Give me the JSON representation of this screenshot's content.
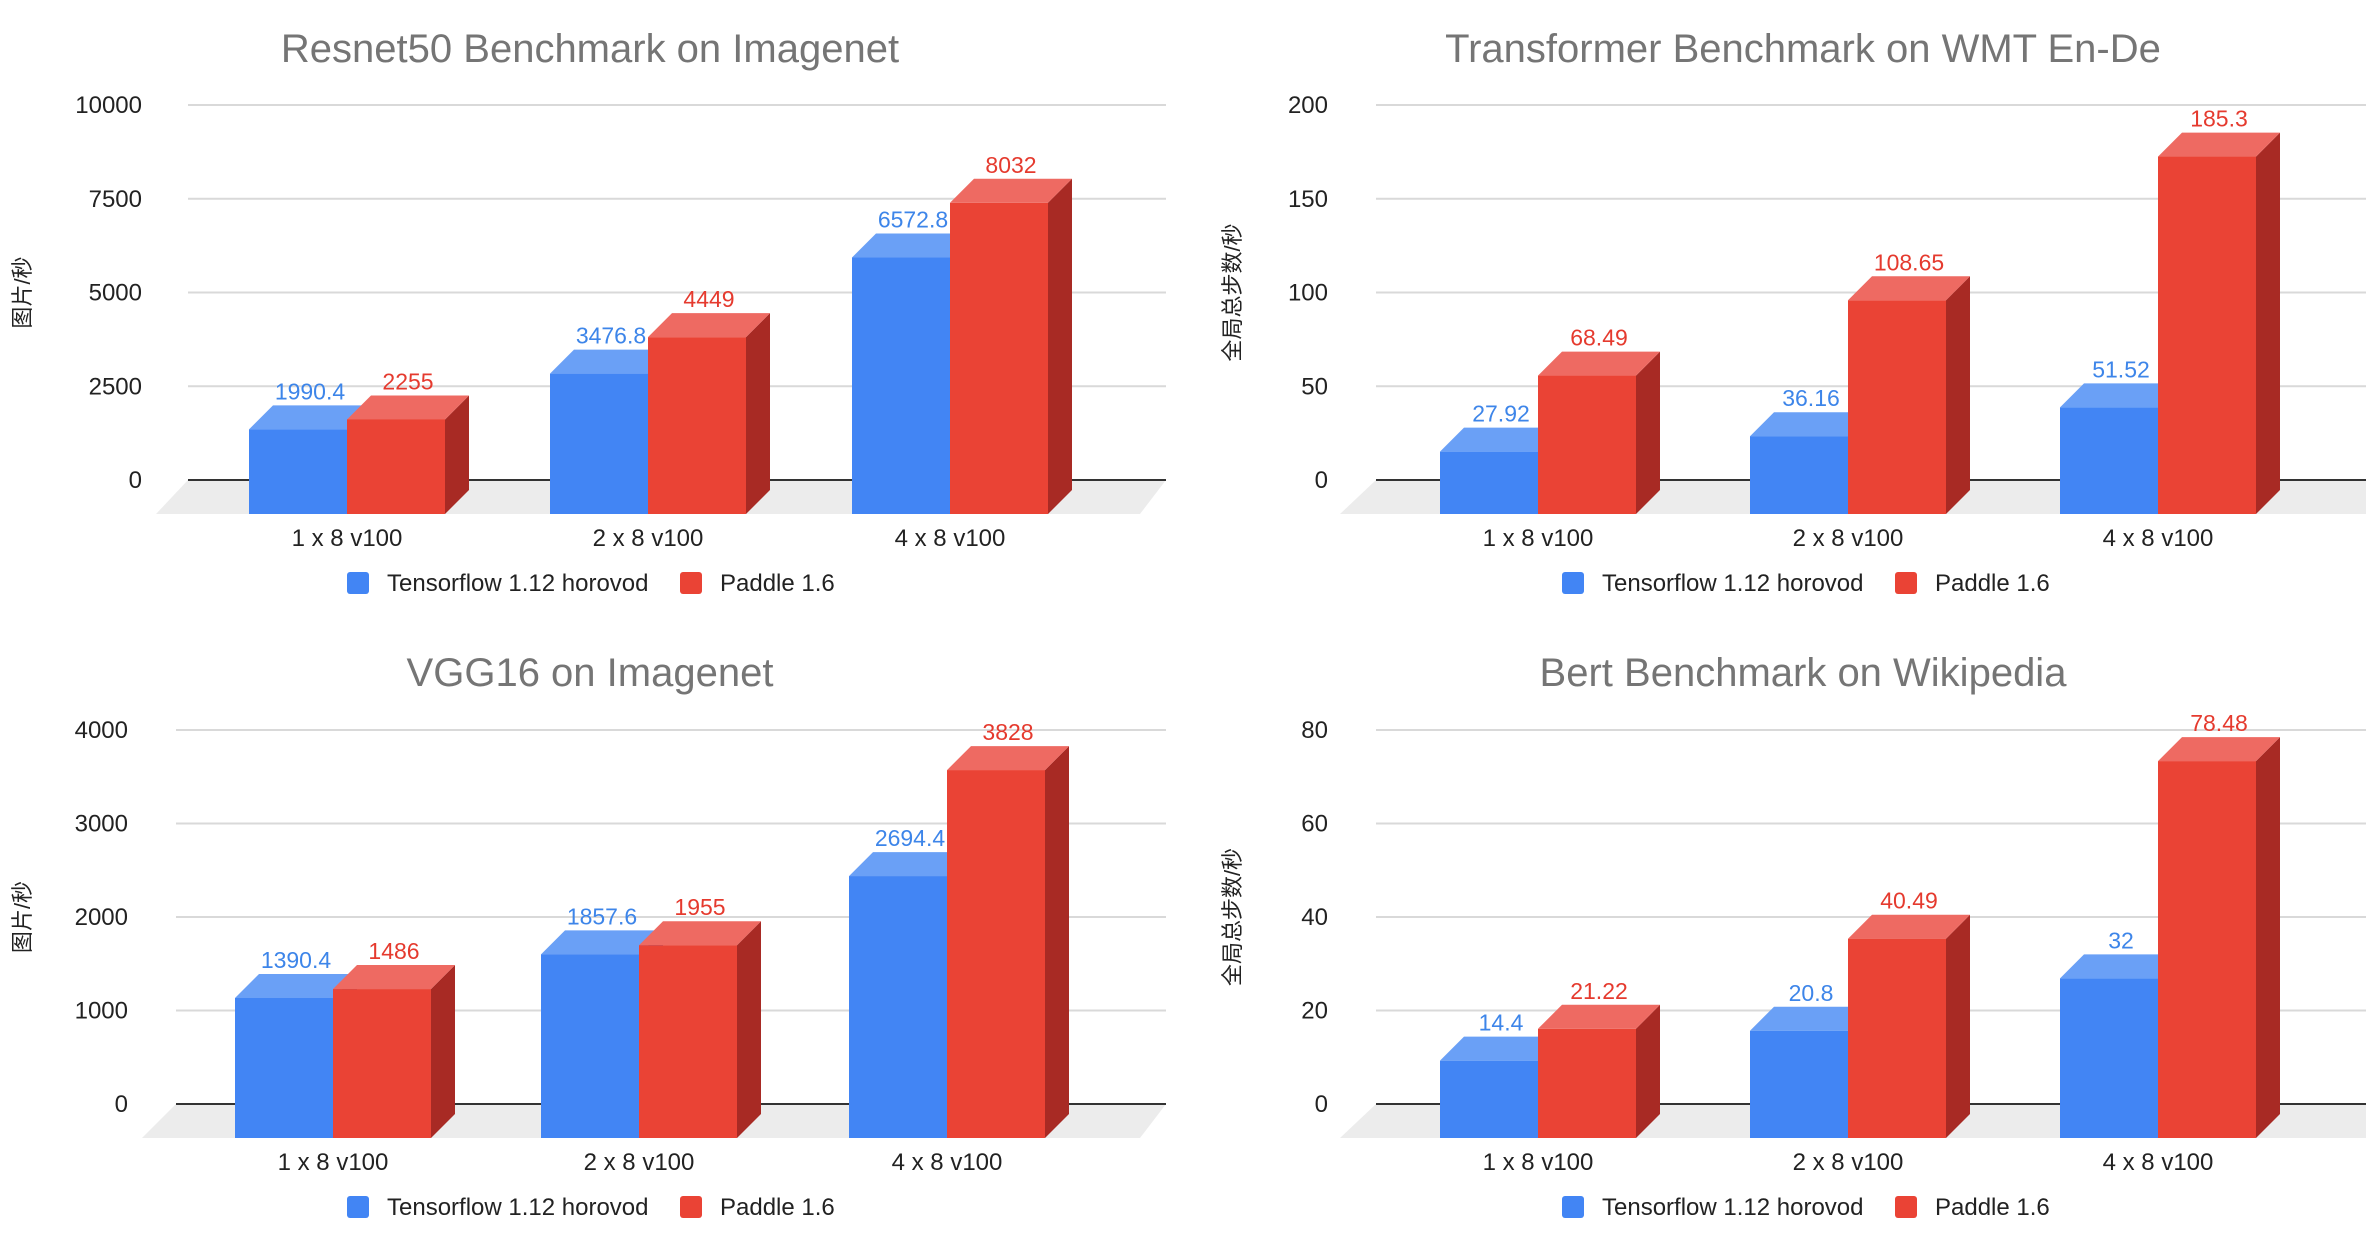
{
  "colors": {
    "series_front": [
      "#4285f4",
      "#ea4335"
    ],
    "series_top": [
      "#6aa0f6",
      "#ee6a62"
    ],
    "series_side": [
      "#2a6fd6",
      "#a82a24"
    ],
    "label": [
      "#3d85e9",
      "#e53a2e"
    ],
    "grid": "#d9d9d9",
    "axis": "#333333",
    "floor": "#ececec"
  },
  "legend": [
    "Tensorflow 1.12 horovod",
    "Paddle 1.6"
  ],
  "chart_data": [
    {
      "type": "bar",
      "title": "Resnet50 Benchmark on Imagenet",
      "ylabel": "图片/秒",
      "xlabel": "",
      "categories": [
        "1 x 8 v100",
        "2 x 8 v100",
        "4 x 8 v100"
      ],
      "ylim": [
        0,
        10000
      ],
      "yticks": [
        0,
        2500,
        5000,
        7500,
        10000
      ],
      "series": [
        {
          "name": "Tensorflow 1.12 horovod",
          "values": [
            1990.4,
            3476.8,
            6572.8
          ],
          "labels": [
            "1990.4",
            "3476.8",
            "6572.8"
          ]
        },
        {
          "name": "Paddle 1.6",
          "values": [
            2255,
            4449,
            8032
          ],
          "labels": [
            "2255",
            "4449",
            "8032"
          ]
        }
      ],
      "legend_position": "bottom"
    },
    {
      "type": "bar",
      "title": "Transformer Benchmark on WMT En-De",
      "ylabel": "全局总步数/秒",
      "xlabel": "",
      "categories": [
        "1 x 8 v100",
        "2 x 8 v100",
        "4 x 8 v100"
      ],
      "ylim": [
        0,
        200
      ],
      "yticks": [
        0,
        50,
        100,
        150,
        200
      ],
      "series": [
        {
          "name": "Tensorflow 1.12 horovod",
          "values": [
            27.92,
            36.16,
            51.52
          ],
          "labels": [
            "27.92",
            "36.16",
            "51.52"
          ]
        },
        {
          "name": "Paddle 1.6",
          "values": [
            68.49,
            108.65,
            185.3
          ],
          "labels": [
            "68.49",
            "108.65",
            "185.3"
          ]
        }
      ],
      "legend_position": "bottom"
    },
    {
      "type": "bar",
      "title": "VGG16 on Imagenet",
      "ylabel": "图片/秒",
      "xlabel": "",
      "categories": [
        "1 x 8 v100",
        "2 x 8 v100",
        "4 x 8 v100"
      ],
      "ylim": [
        0,
        4000
      ],
      "yticks": [
        0,
        1000,
        2000,
        3000,
        4000
      ],
      "series": [
        {
          "name": "Tensorflow 1.12 horovod",
          "values": [
            1390.4,
            1857.6,
            2694.4
          ],
          "labels": [
            "1390.4",
            "1857.6",
            "2694.4"
          ]
        },
        {
          "name": "Paddle 1.6",
          "values": [
            1486,
            1955,
            3828
          ],
          "labels": [
            "1486",
            "1955",
            "3828"
          ]
        }
      ],
      "legend_position": "bottom"
    },
    {
      "type": "bar",
      "title": "Bert Benchmark on Wikipedia",
      "ylabel": "全局总步数/秒",
      "xlabel": "",
      "categories": [
        "1 x 8 v100",
        "2 x 8 v100",
        "4 x 8 v100"
      ],
      "ylim": [
        0,
        80
      ],
      "yticks": [
        0,
        20,
        40,
        60,
        80
      ],
      "series": [
        {
          "name": "Tensorflow 1.12 horovod",
          "values": [
            14.4,
            20.8,
            32
          ],
          "labels": [
            "14.4",
            "20.8",
            "32"
          ]
        },
        {
          "name": "Paddle 1.6",
          "values": [
            21.22,
            40.49,
            78.48
          ],
          "labels": [
            "21.22",
            "40.49",
            "78.48"
          ]
        }
      ],
      "legend_position": "bottom"
    }
  ]
}
